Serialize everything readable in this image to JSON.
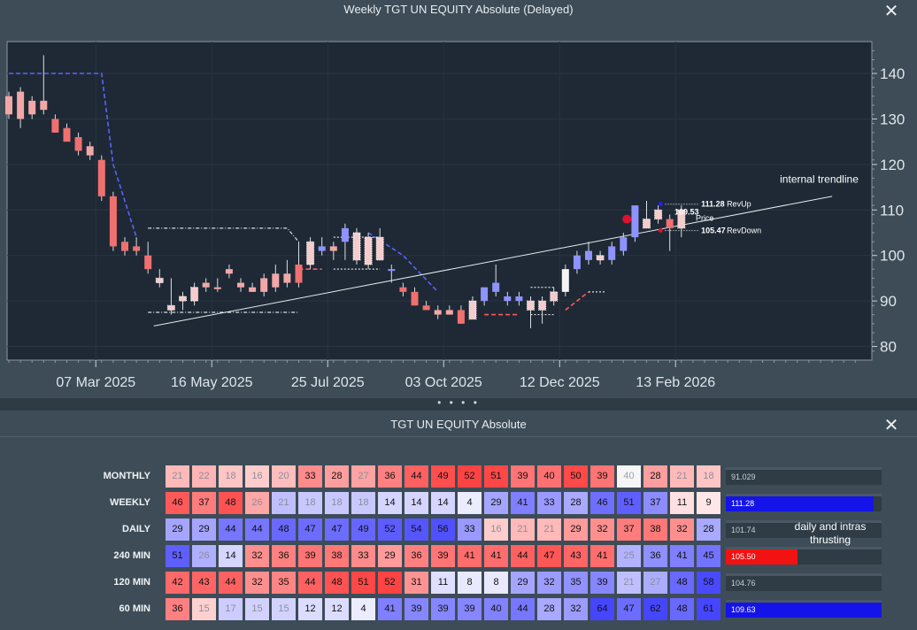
{
  "chart_window": {
    "title": "Weekly TGT UN EQUITY Absolute   (Delayed)",
    "close_glyph": "✕"
  },
  "chart_data": {
    "type": "candlestick",
    "ylim": [
      77,
      147
    ],
    "yticks": [
      80,
      90,
      100,
      110,
      120,
      130,
      140
    ],
    "xticks": [
      "07 Mar 2025",
      "16 May 2025",
      "25 Jul 2025",
      "03 Oct 2025",
      "12 Dec 2025",
      "13 Feb 2026"
    ],
    "xtick_index": [
      7.5,
      17.5,
      27.5,
      37.5,
      47.5,
      57.5
    ],
    "candles": [
      {
        "o": 135,
        "h": 136,
        "l": 130,
        "c": 131,
        "col": "pink"
      },
      {
        "o": 136,
        "h": 137,
        "l": 128,
        "c": 130,
        "col": "pink"
      },
      {
        "o": 134,
        "h": 135,
        "l": 130,
        "c": 131,
        "col": "pink"
      },
      {
        "o": 132,
        "h": 144,
        "l": 131,
        "c": 134,
        "col": "pink"
      },
      {
        "o": 130,
        "h": 131,
        "l": 127,
        "c": 127,
        "col": "red"
      },
      {
        "o": 128,
        "h": 129,
        "l": 125,
        "c": 125,
        "col": "red"
      },
      {
        "o": 126,
        "h": 127,
        "l": 122,
        "c": 123,
        "col": "red"
      },
      {
        "o": 124,
        "h": 125,
        "l": 121,
        "c": 122,
        "col": "pink"
      },
      {
        "o": 121,
        "h": 122,
        "l": 112,
        "c": 113,
        "col": "red"
      },
      {
        "o": 113,
        "h": 114,
        "l": 101,
        "c": 102,
        "col": "red"
      },
      {
        "o": 103,
        "h": 104,
        "l": 100,
        "c": 101,
        "col": "red"
      },
      {
        "o": 102,
        "h": 104,
        "l": 100,
        "c": 101,
        "col": "red"
      },
      {
        "o": 100,
        "h": 103,
        "l": 96,
        "c": 97,
        "col": "red"
      },
      {
        "o": 94,
        "h": 97,
        "l": 93,
        "c": 95,
        "col": "hatch"
      },
      {
        "o": 89,
        "h": 95,
        "l": 87,
        "c": 88,
        "col": "hatch"
      },
      {
        "o": 90,
        "h": 92,
        "l": 88,
        "c": 91,
        "col": "hatch"
      },
      {
        "o": 90,
        "h": 94,
        "l": 89,
        "c": 93,
        "col": "hatch"
      },
      {
        "o": 93,
        "h": 95,
        "l": 92,
        "c": 94,
        "col": "pink"
      },
      {
        "o": 93,
        "h": 95,
        "l": 92,
        "c": 93,
        "col": "pink"
      },
      {
        "o": 96,
        "h": 98,
        "l": 95,
        "c": 97,
        "col": "pink"
      },
      {
        "o": 94,
        "h": 95,
        "l": 92,
        "c": 93,
        "col": "pink"
      },
      {
        "o": 93,
        "h": 94,
        "l": 92,
        "c": 92,
        "col": "pink"
      },
      {
        "o": 92,
        "h": 96,
        "l": 91,
        "c": 95,
        "col": "pink"
      },
      {
        "o": 93,
        "h": 98,
        "l": 92,
        "c": 96,
        "col": "pink"
      },
      {
        "o": 96,
        "h": 99,
        "l": 93,
        "c": 94,
        "col": "pink"
      },
      {
        "o": 94,
        "h": 103,
        "l": 93,
        "c": 98,
        "col": "red"
      },
      {
        "o": 98,
        "h": 104,
        "l": 97,
        "c": 103,
        "col": "hatch"
      },
      {
        "o": 102,
        "h": 104,
        "l": 100,
        "c": 101,
        "col": "blue"
      },
      {
        "o": 101,
        "h": 103,
        "l": 99,
        "c": 102,
        "col": "pink"
      },
      {
        "o": 103,
        "h": 107,
        "l": 99,
        "c": 106,
        "col": "blue"
      },
      {
        "o": 105,
        "h": 106,
        "l": 98,
        "c": 99,
        "col": "hatch"
      },
      {
        "o": 98,
        "h": 105,
        "l": 97,
        "c": 104,
        "col": "hatch"
      },
      {
        "o": 104,
        "h": 106,
        "l": 99,
        "c": 99,
        "col": "hatch"
      },
      {
        "o": 97,
        "h": 98,
        "l": 94,
        "c": 97,
        "col": "blue"
      },
      {
        "o": 93,
        "h": 94,
        "l": 91,
        "c": 92,
        "col": "red"
      },
      {
        "o": 92,
        "h": 93,
        "l": 89,
        "c": 89,
        "col": "red"
      },
      {
        "o": 89,
        "h": 90,
        "l": 88,
        "c": 88,
        "col": "red"
      },
      {
        "o": 88,
        "h": 89,
        "l": 86,
        "c": 87,
        "col": "pink"
      },
      {
        "o": 87,
        "h": 89,
        "l": 87,
        "c": 88,
        "col": "pink"
      },
      {
        "o": 88,
        "h": 89,
        "l": 85,
        "c": 85,
        "col": "red"
      },
      {
        "o": 86,
        "h": 91,
        "l": 86,
        "c": 90,
        "col": "hatch"
      },
      {
        "o": 90,
        "h": 93,
        "l": 89,
        "c": 93,
        "col": "blue"
      },
      {
        "o": 92,
        "h": 98,
        "l": 91,
        "c": 94,
        "col": "blue"
      },
      {
        "o": 91,
        "h": 92,
        "l": 89,
        "c": 90,
        "col": "blue"
      },
      {
        "o": 91,
        "h": 92,
        "l": 89,
        "c": 90,
        "col": "blue"
      },
      {
        "o": 90,
        "h": 91,
        "l": 84,
        "c": 88,
        "col": "hatch"
      },
      {
        "o": 88,
        "h": 91,
        "l": 85,
        "c": 90,
        "col": "hatch"
      },
      {
        "o": 90,
        "h": 93,
        "l": 89,
        "c": 92,
        "col": "hatch"
      },
      {
        "o": 92,
        "h": 98,
        "l": 91,
        "c": 97,
        "col": "white"
      },
      {
        "o": 97,
        "h": 101,
        "l": 96,
        "c": 100,
        "col": "blue"
      },
      {
        "o": 99,
        "h": 103,
        "l": 98,
        "c": 101,
        "col": "blue"
      },
      {
        "o": 100,
        "h": 101,
        "l": 98,
        "c": 99,
        "col": "hatch"
      },
      {
        "o": 99,
        "h": 103,
        "l": 98,
        "c": 102,
        "col": "blue"
      },
      {
        "o": 101,
        "h": 105,
        "l": 100,
        "c": 104,
        "col": "blue"
      },
      {
        "o": 104,
        "h": 111,
        "l": 103,
        "c": 111,
        "col": "blue"
      },
      {
        "o": 108,
        "h": 112,
        "l": 106,
        "c": 106,
        "col": "hatch"
      },
      {
        "o": 110,
        "h": 111,
        "l": 107,
        "c": 108,
        "col": "hatch"
      },
      {
        "o": 108,
        "h": 109,
        "l": 101,
        "c": 106,
        "col": "red"
      },
      {
        "o": 106,
        "h": 111,
        "l": 104,
        "c": 110,
        "col": "hatch"
      }
    ],
    "trendline_label": "internal trendline",
    "annotations": [
      {
        "value": "111.28",
        "label": "RevUp"
      },
      {
        "value": "109.53",
        "label": "Price"
      },
      {
        "value": "105.47",
        "label": "RevDown"
      }
    ]
  },
  "matrix_window": {
    "title": "TGT UN EQUITY Absolute",
    "close_glyph": "✕",
    "note": "daily and intras thrusting",
    "rows": [
      {
        "label": "MONTHLY",
        "values": [
          21,
          22,
          18,
          16,
          20,
          33,
          28,
          27,
          36,
          44,
          49,
          52,
          51,
          39,
          40,
          50,
          39,
          40,
          28,
          21,
          18
        ],
        "tones": [
          "d",
          "d",
          "d",
          "d",
          "d",
          "d",
          "d",
          "d",
          "d",
          "d",
          "d",
          "d",
          "d",
          "d",
          "d",
          "d",
          "d",
          "n",
          "d",
          "d",
          "d"
        ],
        "readout": "91.029",
        "bar_color": "",
        "bar_frac": 0
      },
      {
        "label": "WEEKLY",
        "values": [
          46,
          37,
          48,
          26,
          21,
          18,
          18,
          18,
          14,
          14,
          14,
          4,
          29,
          41,
          33,
          28,
          46,
          51,
          37,
          11,
          9
        ],
        "tones": [
          "d",
          "d",
          "d",
          "d",
          "u",
          "u",
          "u",
          "u",
          "u",
          "u",
          "u",
          "u",
          "u",
          "u",
          "u",
          "u",
          "u",
          "u",
          "u",
          "d",
          "d"
        ],
        "readout": "111.28",
        "bar_color": "#1414e8",
        "bar_frac": 0.95
      },
      {
        "label": "DAILY",
        "values": [
          29,
          29,
          44,
          44,
          48,
          47,
          47,
          49,
          52,
          54,
          56,
          33,
          16,
          21,
          21,
          29,
          32,
          37,
          38,
          32,
          28
        ],
        "tones": [
          "u",
          "u",
          "u",
          "u",
          "u",
          "u",
          "u",
          "u",
          "u",
          "u",
          "u",
          "u",
          "d",
          "d",
          "d",
          "d",
          "d",
          "d",
          "d",
          "d",
          "u"
        ],
        "readout": "101.74",
        "bar_color": "",
        "bar_frac": 0
      },
      {
        "label": "240 MIN",
        "values": [
          51,
          26,
          14,
          32,
          36,
          39,
          38,
          33,
          29,
          36,
          39,
          41,
          41,
          44,
          47,
          43,
          41,
          25,
          36,
          41,
          45
        ],
        "tones": [
          "u",
          "u",
          "u",
          "d",
          "d",
          "d",
          "d",
          "d",
          "d",
          "d",
          "d",
          "d",
          "d",
          "d",
          "d",
          "d",
          "d",
          "u",
          "u",
          "u",
          "u"
        ],
        "readout": "105.50",
        "bar_color": "#f21212",
        "bar_frac": 0.46
      },
      {
        "label": "120 MIN",
        "values": [
          42,
          43,
          44,
          32,
          35,
          44,
          48,
          51,
          52,
          31,
          11,
          8,
          8,
          29,
          32,
          35,
          39,
          21,
          27,
          48,
          58
        ],
        "tones": [
          "d",
          "d",
          "d",
          "d",
          "d",
          "d",
          "d",
          "d",
          "d",
          "d",
          "u",
          "u",
          "u",
          "u",
          "u",
          "u",
          "u",
          "u",
          "u",
          "u",
          "u"
        ],
        "readout": "104.76",
        "bar_color": "",
        "bar_frac": 0
      },
      {
        "label": "60 MIN",
        "values": [
          36,
          15,
          17,
          15,
          15,
          12,
          12,
          4,
          41,
          39,
          39,
          39,
          40,
          44,
          28,
          32,
          64,
          47,
          62,
          48,
          61
        ],
        "tones": [
          "d",
          "d",
          "u",
          "u",
          "u",
          "u",
          "u",
          "u",
          "u",
          "u",
          "u",
          "u",
          "u",
          "u",
          "u",
          "u",
          "u",
          "u",
          "u",
          "u",
          "u"
        ],
        "readout": "109.63",
        "bar_color": "#1414e8",
        "bar_frac": 1.0
      }
    ]
  }
}
